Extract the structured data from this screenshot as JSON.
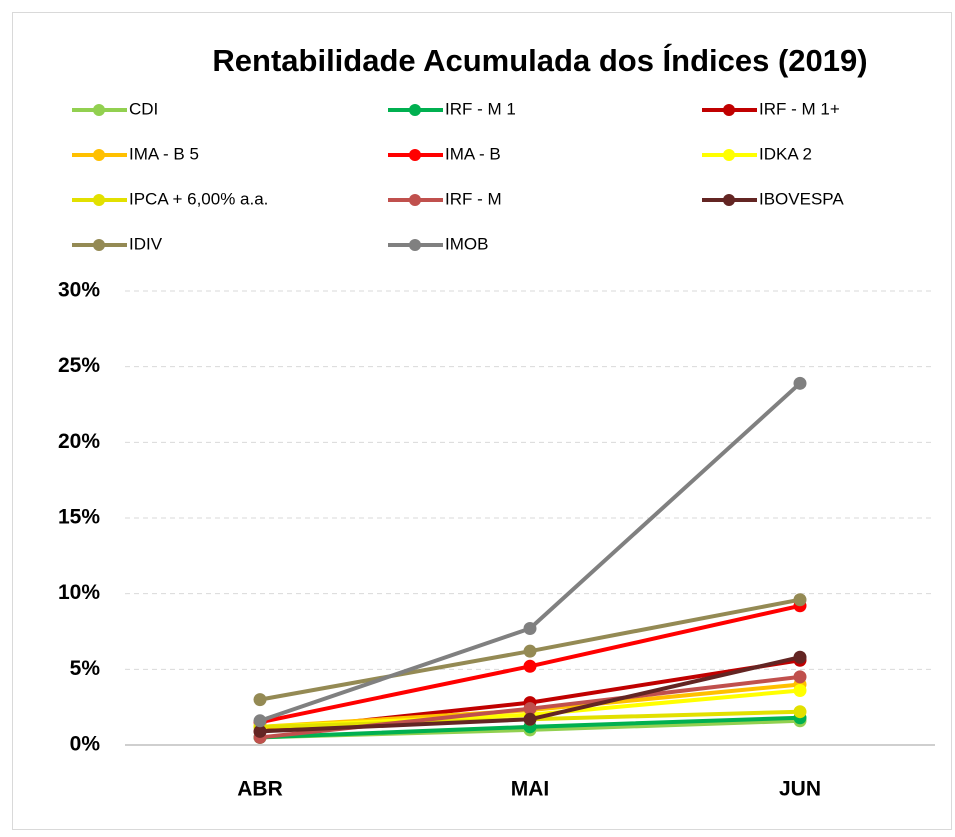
{
  "chart_data": {
    "type": "line",
    "title": "Rentabilidade Acumulada dos Índices (2019)",
    "categories": [
      "ABR",
      "MAI",
      "JUN"
    ],
    "ylim": [
      0,
      30
    ],
    "yticks": [
      {
        "value": 0,
        "label": "0%"
      },
      {
        "value": 5,
        "label": "5%"
      },
      {
        "value": 10,
        "label": "10%"
      },
      {
        "value": 15,
        "label": "15%"
      },
      {
        "value": 20,
        "label": "20%"
      },
      {
        "value": 25,
        "label": "25%"
      },
      {
        "value": 30,
        "label": "30%"
      }
    ],
    "grid": true,
    "legend": "top",
    "series": [
      {
        "name": "CDI",
        "color": "#92d050",
        "values": [
          0.5,
          1.0,
          1.6
        ]
      },
      {
        "name": "IRF - M 1",
        "color": "#00b050",
        "values": [
          0.5,
          1.2,
          1.8
        ]
      },
      {
        "name": "IRF - M 1+",
        "color": "#c00000",
        "values": [
          0.9,
          2.8,
          5.6
        ]
      },
      {
        "name": "IMA - B 5",
        "color": "#ffc000",
        "values": [
          1.2,
          2.3,
          4.0
        ]
      },
      {
        "name": "IMA - B",
        "color": "#ff0000",
        "values": [
          1.5,
          5.2,
          9.2
        ]
      },
      {
        "name": "IDKA 2",
        "color": "#ffff00",
        "values": [
          1.2,
          2.0,
          3.6
        ]
      },
      {
        "name": "IPCA + 6,00% a.a.",
        "color": "#e2e000",
        "values": [
          1.2,
          1.7,
          2.2
        ]
      },
      {
        "name": "IRF - M",
        "color": "#c0504d",
        "values": [
          0.5,
          2.4,
          4.5
        ]
      },
      {
        "name": "IBOVESPA",
        "color": "#632523",
        "values": [
          0.9,
          1.7,
          5.8
        ]
      },
      {
        "name": "IDIV",
        "color": "#948a54",
        "values": [
          3.0,
          6.2,
          9.6
        ]
      },
      {
        "name": "IMOB",
        "color": "#808080",
        "values": [
          1.6,
          7.7,
          23.9
        ]
      }
    ]
  }
}
